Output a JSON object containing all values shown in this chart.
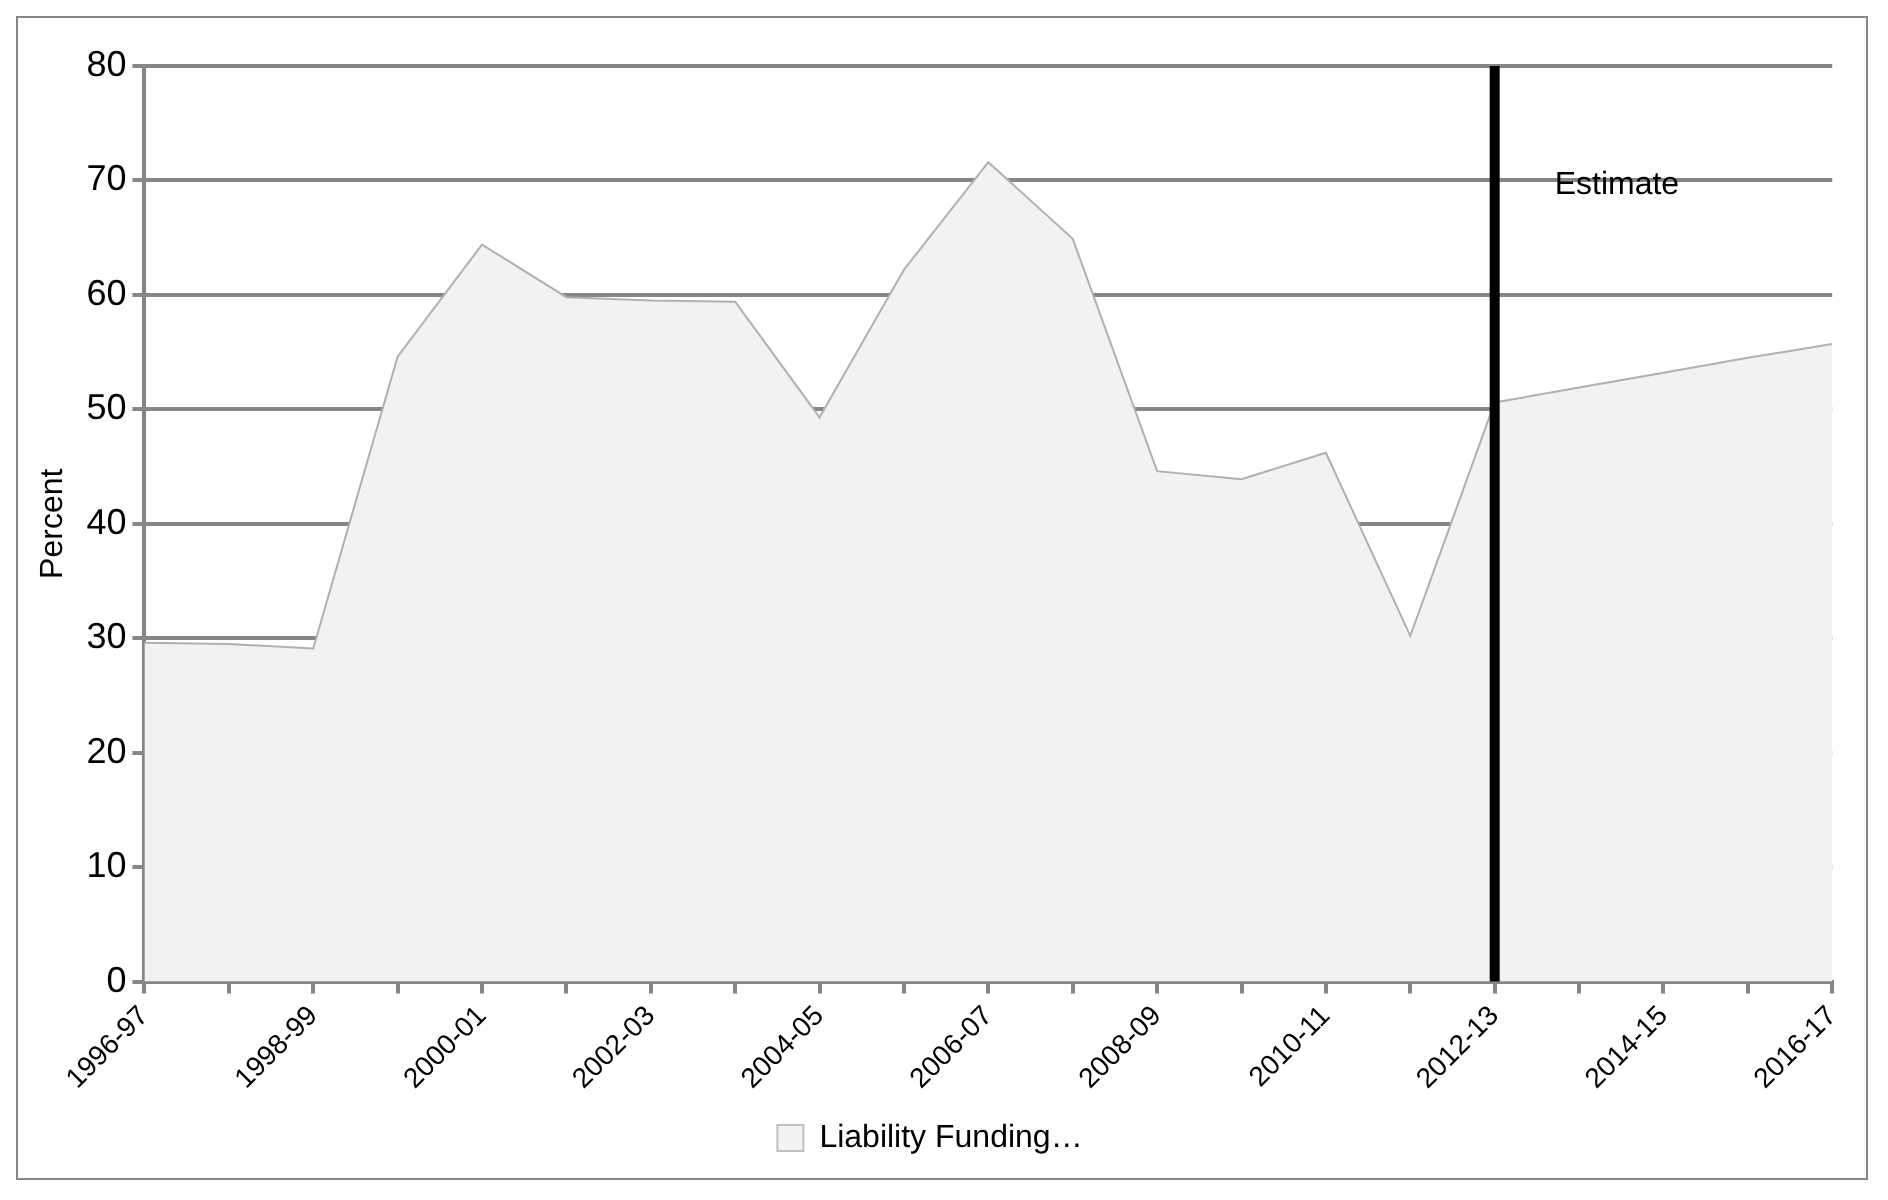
{
  "chart_data": {
    "type": "area",
    "ylabel": "Percent",
    "categories": [
      "1996-97",
      null,
      "1998-99",
      null,
      "2000-01",
      null,
      "2002-03",
      null,
      "2004-05",
      null,
      "2006-07",
      null,
      "2008-09",
      null,
      "2010-11",
      null,
      "2012-13",
      null,
      "2014-15",
      null,
      "2016-17"
    ],
    "series": [
      {
        "name": "Liability Funding…",
        "color": "#f2f2f2",
        "values": [
          29.6,
          29.5,
          29.1,
          54.6,
          64.4,
          59.8,
          59.5,
          59.4,
          49.3,
          62.2,
          71.6,
          64.9,
          44.6,
          43.9,
          46.2,
          30.2,
          50.6,
          51.9,
          53.2,
          54.5,
          55.7
        ]
      }
    ],
    "ylim": [
      0,
      80
    ],
    "yticks": [
      0,
      10,
      20,
      30,
      40,
      50,
      60,
      70,
      80
    ],
    "grid": "y",
    "legend": "bottom",
    "ref_lines": [
      {
        "axis": "x",
        "value": "2012-13",
        "label": "Estimate",
        "color": "#000000"
      }
    ]
  }
}
